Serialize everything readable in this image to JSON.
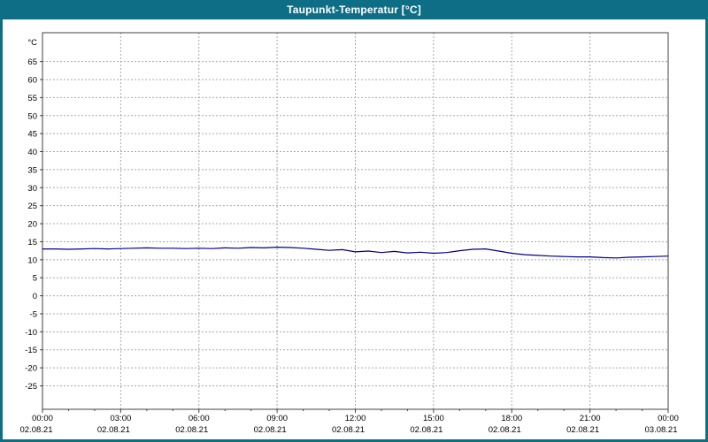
{
  "window": {
    "title": "Taupunkt-Temperatur [°C]"
  },
  "colors": {
    "frame": "#0e6e86",
    "title_text": "#ffffff",
    "plot_background": "#ffffff",
    "grid": "#a8a8a8",
    "plot_border": "#404040",
    "line": "#00008b",
    "tick_text": "#000000"
  },
  "chart_data": {
    "type": "line",
    "title": "Taupunkt-Temperatur [°C]",
    "xlabel": "",
    "ylabel": "°C",
    "grid": "dashed",
    "legend": "none",
    "ylim": [
      -31.5,
      73
    ],
    "xlim": [
      0,
      24
    ],
    "y_ticks": [
      65,
      60,
      55,
      50,
      45,
      40,
      35,
      30,
      25,
      20,
      15,
      10,
      5,
      0,
      -5,
      -10,
      -15,
      -20,
      -25
    ],
    "x_ticks": [
      {
        "hour": 0,
        "time": "00:00",
        "date": "02.08.21"
      },
      {
        "hour": 3,
        "time": "03:00",
        "date": "02.08.21"
      },
      {
        "hour": 6,
        "time": "06:00",
        "date": "02.08.21"
      },
      {
        "hour": 9,
        "time": "09:00",
        "date": "02.08.21"
      },
      {
        "hour": 12,
        "time": "12:00",
        "date": "02.08.21"
      },
      {
        "hour": 15,
        "time": "15:00",
        "date": "02.08.21"
      },
      {
        "hour": 18,
        "time": "18:00",
        "date": "02.08.21"
      },
      {
        "hour": 21,
        "time": "21:00",
        "date": "02.08.21"
      },
      {
        "hour": 24,
        "time": "00:00",
        "date": "03.08.21"
      }
    ],
    "series": [
      {
        "name": "Taupunkt-Temperatur",
        "color": "#00008b",
        "x": [
          0,
          0.5,
          1,
          1.5,
          2,
          2.5,
          3,
          3.5,
          4,
          4.5,
          5,
          5.5,
          6,
          6.5,
          7,
          7.5,
          8,
          8.5,
          9,
          9.5,
          10,
          10.5,
          11,
          11.5,
          12,
          12.5,
          13,
          13.5,
          14,
          14.5,
          15,
          15.5,
          16,
          16.5,
          17,
          17.5,
          18,
          18.5,
          19,
          19.5,
          20,
          20.5,
          21,
          21.5,
          22,
          22.5,
          23,
          23.5,
          24
        ],
        "y": [
          13.0,
          13.0,
          12.9,
          13.0,
          13.1,
          13.0,
          13.1,
          13.2,
          13.3,
          13.2,
          13.2,
          13.1,
          13.2,
          13.1,
          13.3,
          13.2,
          13.4,
          13.3,
          13.5,
          13.4,
          13.2,
          12.9,
          12.6,
          12.8,
          12.2,
          12.4,
          12.0,
          12.3,
          11.9,
          12.1,
          11.8,
          12.0,
          12.5,
          12.9,
          13.0,
          12.4,
          11.8,
          11.4,
          11.2,
          11.0,
          10.9,
          10.8,
          10.8,
          10.6,
          10.5,
          10.7,
          10.8,
          10.9,
          11.0
        ]
      }
    ]
  }
}
